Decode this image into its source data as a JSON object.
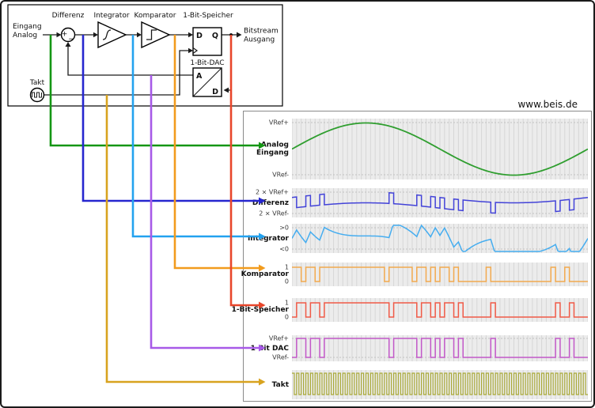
{
  "watermark": "www.beis.de",
  "diagram": {
    "input_line1": "Eingang",
    "input_line2": "Analog",
    "output_line1": "Bitstream",
    "output_line2": "Ausgang",
    "sum_plus": "+",
    "sum_minus": "−",
    "label_differenz": "Differenz",
    "label_integrator": "Integrator",
    "label_komparator": "Komparator",
    "label_speicher": "1-Bit-Speicher",
    "label_dac": "1-Bit-DAC",
    "label_takt": "Takt",
    "ff_d": "D",
    "ff_q": "Q",
    "dac_a": "A",
    "dac_d": "D"
  },
  "chart_data": {
    "type": "line",
    "clocks": 64,
    "sine_cycles": 1,
    "bitstream": [
      0,
      1,
      1,
      0,
      1,
      1,
      0,
      1,
      1,
      1,
      1,
      1,
      1,
      1,
      1,
      1,
      1,
      1,
      1,
      1,
      1,
      0,
      1,
      1,
      1,
      1,
      1,
      0,
      1,
      1,
      0,
      1,
      0,
      1,
      1,
      0,
      1,
      0,
      0,
      0,
      0,
      0,
      0,
      1,
      0,
      0,
      0,
      0,
      0,
      0,
      0,
      0,
      0,
      0,
      0,
      0,
      0,
      1,
      0,
      0,
      1,
      0,
      0,
      0
    ],
    "rows": [
      {
        "id": "analog",
        "name_lines": [
          "Analog",
          "Eingang"
        ],
        "top_label": "VRef+",
        "bottom_label": "VRef-",
        "trace": "sine",
        "color": "#2f9e2f",
        "route_color": "#149614"
      },
      {
        "id": "differenz",
        "name_lines": [
          "Differenz"
        ],
        "top_label": "2 × VRef+",
        "bottom_label": "2 × VRef-",
        "trace": "difference",
        "color": "#4343d8",
        "route_color": "#2626cf"
      },
      {
        "id": "integrator",
        "name_lines": [
          "Integrator"
        ],
        "top_label": ">0",
        "bottom_label": "<0",
        "trace": "integral",
        "color": "#45adf0",
        "route_color": "#23a2ef"
      },
      {
        "id": "komparator",
        "name_lines": [
          "Komparator"
        ],
        "top_label": "1",
        "bottom_label": "0",
        "trace": "bits",
        "shift": 1,
        "color": "#f2a94e",
        "route_color": "#f29b1d"
      },
      {
        "id": "speicher",
        "name_lines": [
          "1-Bit-Speicher"
        ],
        "top_label": "1",
        "bottom_label": "0",
        "trace": "bits",
        "shift": 0,
        "color": "#f05a47",
        "route_color": "#e8462b"
      },
      {
        "id": "dac",
        "name_lines": [
          "1-Bit DAC"
        ],
        "top_label": "VRef+",
        "bottom_label": "VRef-",
        "trace": "bits",
        "shift": 0,
        "color": "#c258c8",
        "route_color": "#a75ae8"
      },
      {
        "id": "takt",
        "name_lines": [
          "Takt"
        ],
        "trace": "clock",
        "color": "#a8a836",
        "route_color": "#d8a31f"
      }
    ]
  }
}
